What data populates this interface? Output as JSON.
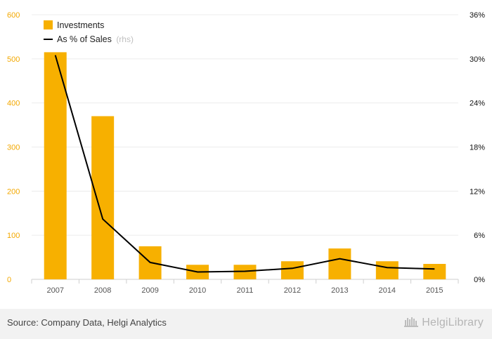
{
  "chart_data": {
    "type": "bar+line",
    "categories": [
      "2007",
      "2008",
      "2009",
      "2010",
      "2011",
      "2012",
      "2013",
      "2014",
      "2015"
    ],
    "series": [
      {
        "name": "Investments",
        "type": "bar",
        "axis": "left",
        "color": "#f7b000",
        "values": [
          515,
          370,
          75,
          33,
          33,
          41,
          70,
          41,
          35
        ]
      },
      {
        "name": "As % of Sales",
        "type": "line",
        "axis": "right",
        "color": "#000000",
        "values": [
          30.5,
          8.2,
          2.3,
          1.0,
          1.1,
          1.5,
          2.8,
          1.6,
          1.4
        ]
      }
    ],
    "yleft": {
      "min": 0,
      "max": 600,
      "ticks": [
        "0",
        "100",
        "200",
        "300",
        "400",
        "500",
        "600"
      ],
      "color": "#f3a800"
    },
    "yright": {
      "min": 0,
      "max": 36,
      "ticks": [
        "0%",
        "6%",
        "12%",
        "18%",
        "24%",
        "30%",
        "36%"
      ]
    },
    "legend": {
      "position": "top-left",
      "note": "(rhs)"
    },
    "grid": true
  },
  "footer": {
    "source": "Source: Company Data, Helgi Analytics",
    "brand": "HelgiLibrary"
  }
}
